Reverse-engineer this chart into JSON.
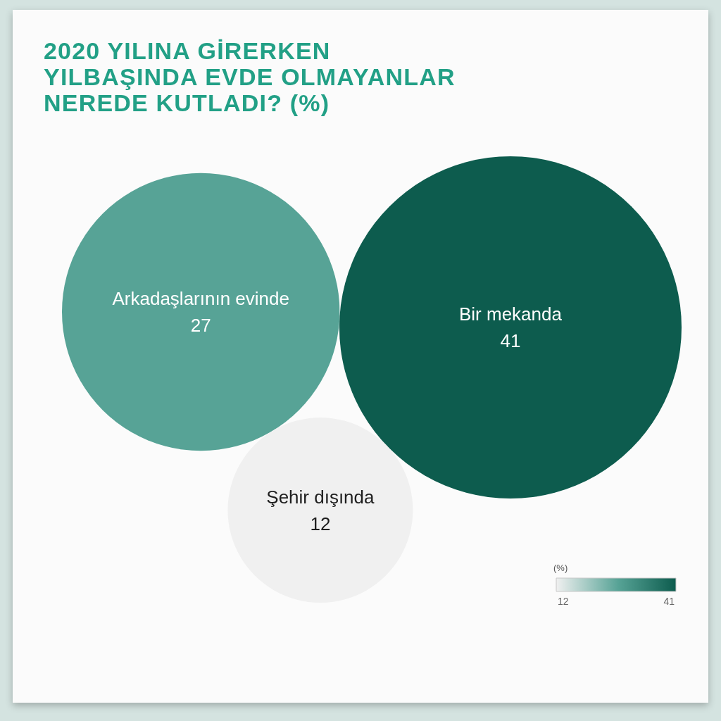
{
  "chart_data": {
    "type": "other",
    "title": "2020 YILINA GİRERKEN YILBAŞINDA EVDE OLMAYANLAR NEREDE KUTLADI? (%)",
    "categories": [
      "Arkadaşlarının evinde",
      "Bir mekanda",
      "Şehir dışında"
    ],
    "values": [
      27,
      41,
      12
    ],
    "colors": [
      "#57a396",
      "#0d5c4e",
      "#f0f0f0"
    ],
    "data_labels": true,
    "clabel": "(%)",
    "annotations": [
      "12",
      "41"
    ]
  }
}
